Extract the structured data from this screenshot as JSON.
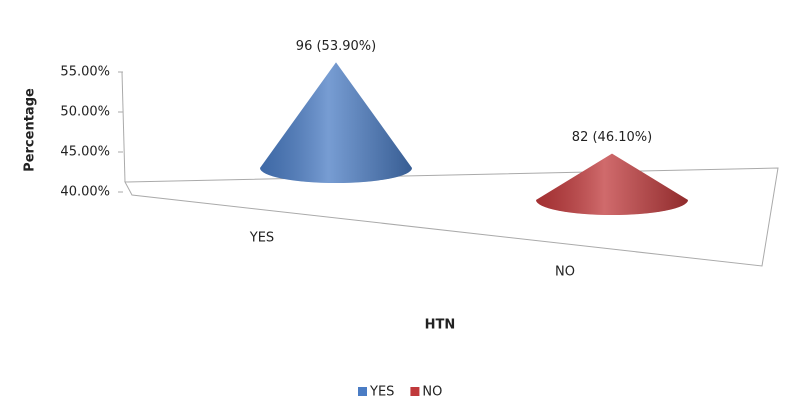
{
  "chart_data": {
    "type": "cone",
    "categories": [
      "YES",
      "NO"
    ],
    "values": [
      53.9,
      46.1
    ],
    "value_labels": [
      "96 (53.90%)",
      "82 (46.10%)"
    ],
    "colors": [
      "#4a7cc4",
      "#c0393b"
    ],
    "xlabel": "HTN",
    "ylabel": "Percentage",
    "ylim": [
      40,
      55
    ],
    "yticks": [
      {
        "value": 40,
        "label": "40.00%"
      },
      {
        "value": 45,
        "label": "45.00%"
      },
      {
        "value": 50,
        "label": "50.00%"
      },
      {
        "value": 55,
        "label": "55.00%"
      }
    ],
    "legend": "bottom"
  }
}
